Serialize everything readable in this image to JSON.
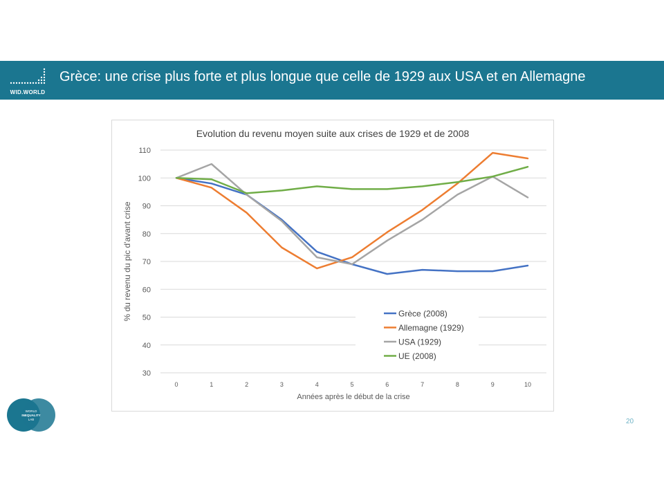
{
  "header": {
    "logo_text": "WID.WORLD",
    "title": "Grèce: une crise plus forte et plus longue que celle de 1929 aux USA et en Allemagne",
    "background": "#1b7690"
  },
  "footer": {
    "logo_lines": [
      "WORLD",
      "INEQUALITY",
      "LAB"
    ],
    "page_number": "20"
  },
  "chart_data": {
    "type": "line",
    "title": "Evolution du revenu moyen suite aux crises de 1929 et de 2008",
    "xlabel": "Années après le début de la crise",
    "ylabel": "% du revenu du pic d'avant crise",
    "x": [
      0,
      1,
      2,
      3,
      4,
      5,
      6,
      7,
      8,
      9,
      10
    ],
    "ylim": [
      30,
      110
    ],
    "yticks": [
      30,
      40,
      50,
      60,
      70,
      80,
      90,
      100,
      110
    ],
    "grid": true,
    "legend_position": "bottom-center",
    "series": [
      {
        "name": "Grèce (2008)",
        "color": "#4472c4",
        "values": [
          100,
          98,
          94,
          85,
          73.5,
          69,
          65.5,
          67,
          66.5,
          66.5,
          68.5
        ]
      },
      {
        "name": "Allemagne (1929)",
        "color": "#ed7d31",
        "values": [
          100,
          96.5,
          87.5,
          75,
          67.5,
          71.5,
          80.5,
          88.5,
          98,
          109,
          107
        ]
      },
      {
        "name": "USA (1929)",
        "color": "#a5a5a5",
        "values": [
          100,
          105,
          94,
          84.5,
          71.5,
          69,
          77.5,
          85,
          94,
          100.5,
          93
        ]
      },
      {
        "name": "UE (2008)",
        "color": "#70ad47",
        "values": [
          100,
          99.5,
          94.5,
          95.5,
          97,
          96,
          96,
          97,
          98.5,
          100.5,
          104
        ]
      }
    ]
  }
}
